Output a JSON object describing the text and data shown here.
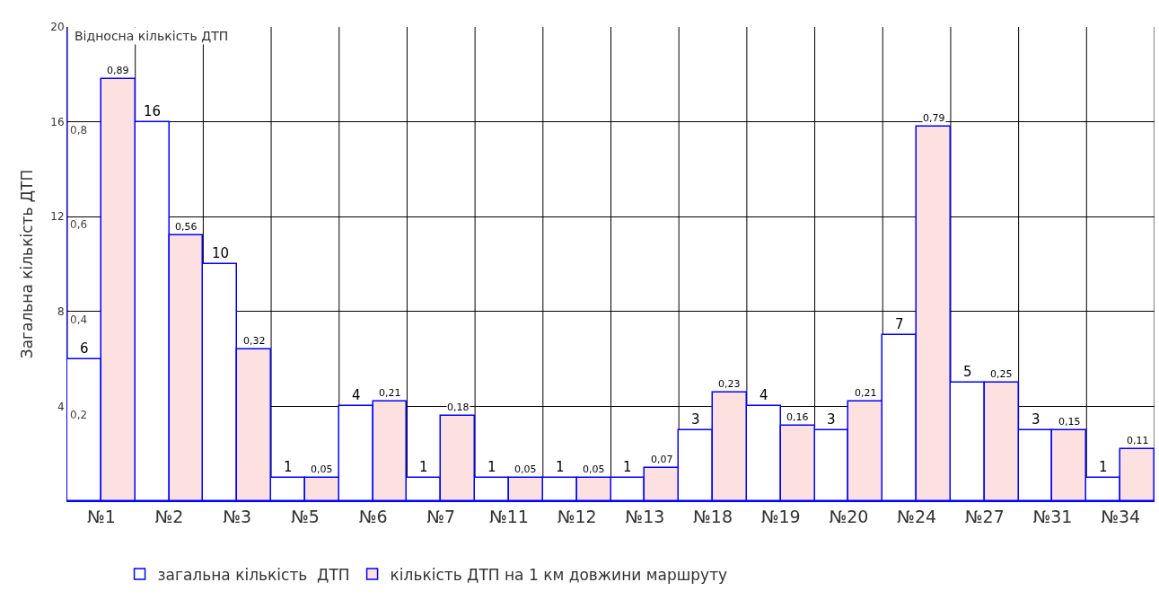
{
  "chart_data": {
    "type": "bar",
    "ylabel": "Загальна кількість ДТП",
    "y2label": "Відносна кількість ДТП",
    "categories": [
      "№1",
      "№2",
      "№3",
      "№5",
      "№6",
      "№7",
      "№11",
      "№12",
      "№13",
      "№18",
      "№19",
      "№20",
      "№24",
      "№27",
      "№31",
      "№34"
    ],
    "series": [
      {
        "name": "загальна кількість  ДТП",
        "color": "#ffffff",
        "values": [
          6,
          16,
          10,
          1,
          4,
          1,
          1,
          1,
          1,
          3,
          4,
          3,
          7,
          5,
          3,
          1
        ]
      },
      {
        "name": "кількість ДТП на 1 км довжини маршруту",
        "color": "#fde0e0",
        "axis": "y2",
        "values": [
          0.89,
          0.56,
          0.32,
          0.05,
          0.21,
          0.18,
          0.05,
          0.05,
          0.07,
          0.23,
          0.16,
          0.21,
          0.79,
          0.25,
          0.15,
          0.11
        ],
        "value_labels": [
          "0,89",
          "0,56",
          "0,32",
          "0,05",
          "0,21",
          "0,18",
          "0,05",
          "0,05",
          "0,07",
          "0,23",
          "0,16",
          "0,21",
          "0,79",
          "0,25",
          "0,15",
          "0,11"
        ]
      }
    ],
    "ylim": [
      0,
      20
    ],
    "yticks": [
      4,
      8,
      12,
      16,
      20
    ],
    "y2lim": [
      0,
      1
    ],
    "y2ticks": [
      {
        "value": 0.2,
        "label": "0,2"
      },
      {
        "value": 0.4,
        "label": "0,4"
      },
      {
        "value": 0.6,
        "label": "0,6"
      },
      {
        "value": 0.8,
        "label": "0,8"
      }
    ],
    "data_labels": true,
    "grid": true,
    "legend": "bottom"
  }
}
